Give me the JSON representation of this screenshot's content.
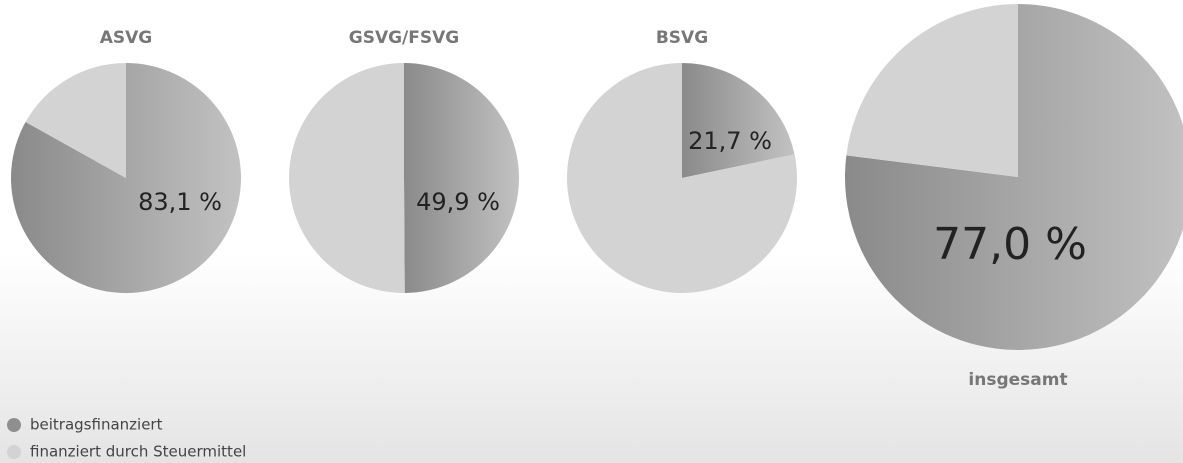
{
  "legend": [
    {
      "name": "beitragsfinanziert",
      "color": "#8f8f8f"
    },
    {
      "name": "finanziert durch Steuermittel",
      "color": "#d3d3d3"
    }
  ],
  "chart_data": [
    {
      "type": "pie",
      "title": "ASVG",
      "values": [
        83.1,
        16.9
      ],
      "value_labels": [
        "83,1 %",
        null
      ]
    },
    {
      "type": "pie",
      "title": "GSVG/FSVG",
      "values": [
        49.9,
        50.1
      ],
      "value_labels": [
        "49,9 %",
        null
      ]
    },
    {
      "type": "pie",
      "title": "BSVG",
      "values": [
        21.7,
        78.3
      ],
      "value_labels": [
        "21,7 %",
        null
      ]
    },
    {
      "type": "pie",
      "title": "insgesamt",
      "values": [
        77.0,
        23.0
      ],
      "value_labels": [
        "77,0 %",
        null
      ]
    }
  ]
}
